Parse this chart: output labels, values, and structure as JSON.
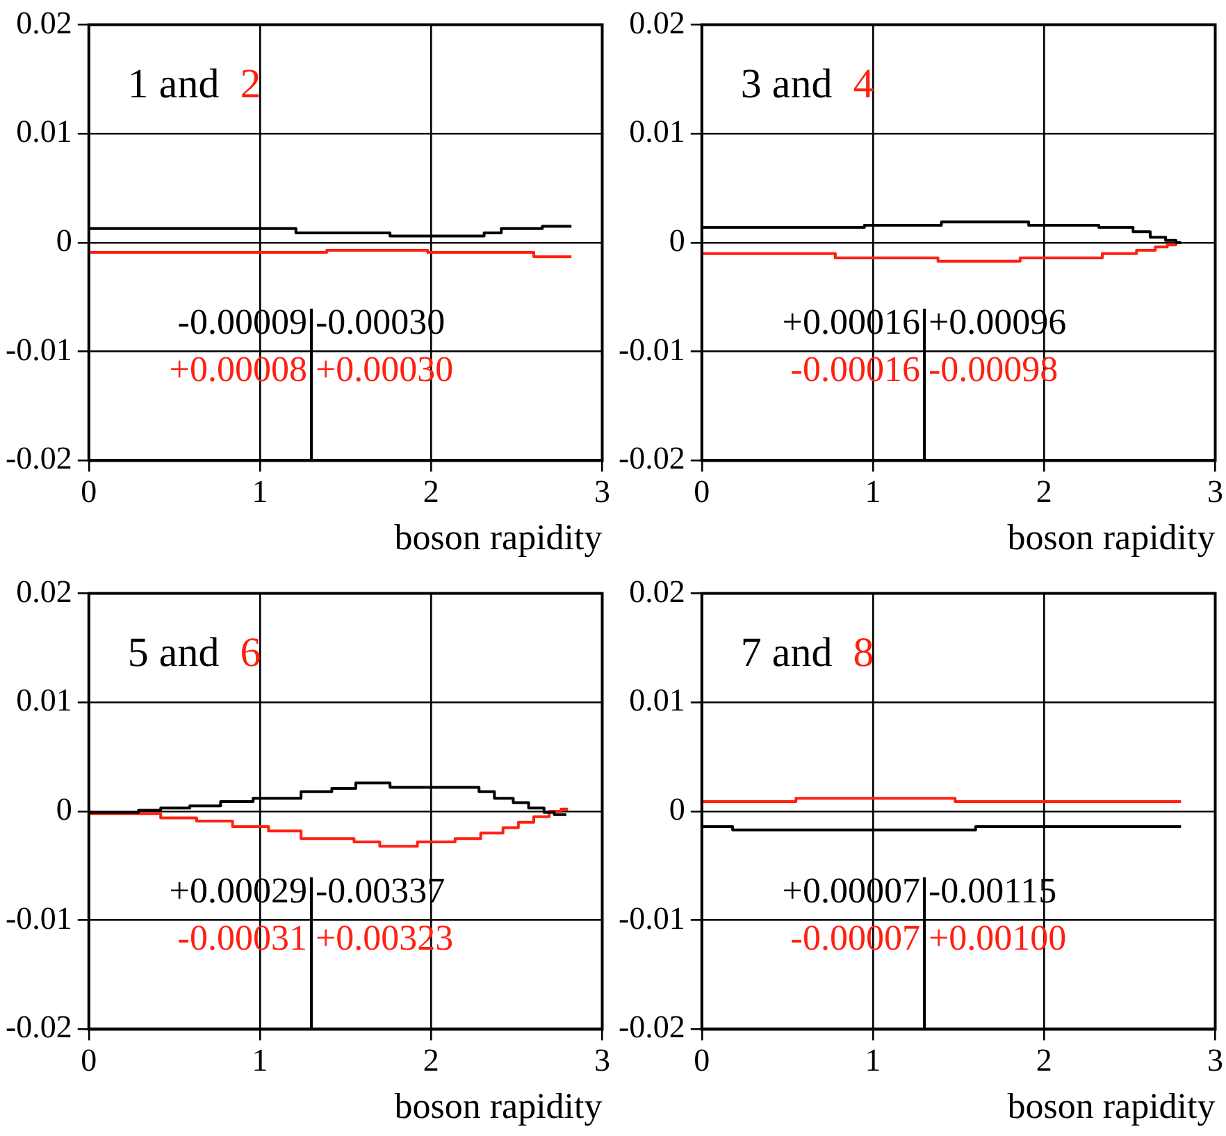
{
  "chart_data": [
    {
      "type": "step",
      "xlabel": "boson rapidity",
      "xlim": [
        0,
        3
      ],
      "xticks": [
        0,
        1,
        2,
        3
      ],
      "ylim": [
        -0.02,
        0.02
      ],
      "yticks": [
        -0.02,
        -0.01,
        0,
        0.01,
        0.02
      ],
      "grid": true,
      "legend": "top left",
      "annotations": [
        "and",
        "-0.00009",
        "-0.00030",
        "+0.00008",
        "+0.00030"
      ],
      "series": [
        {
          "name": "1",
          "color": "#000000",
          "x": [
            0,
            1.21,
            1.76,
            2.31,
            2.41,
            2.65,
            2.74,
            2.82
          ],
          "values": [
            0.0015,
            0.0013,
            0.0009,
            0.0006,
            0.0009,
            0.0013,
            0.0015,
            0.0015
          ]
        },
        {
          "name": "2",
          "color": "#ff2010",
          "x": [
            0,
            1.39,
            1.98,
            2.6,
            2.71,
            2.82
          ],
          "values": [
            -0.0012,
            -0.0009,
            -0.0007,
            -0.0009,
            -0.0013,
            -0.0013
          ]
        }
      ]
    },
    {
      "type": "step",
      "xlabel": "boson rapidity",
      "xlim": [
        0,
        3
      ],
      "xticks": [
        0,
        1,
        2,
        3
      ],
      "ylim": [
        -0.02,
        0.02
      ],
      "yticks": [
        -0.02,
        -0.01,
        0,
        0.01,
        0.02
      ],
      "grid": true,
      "legend": "top left",
      "annotations": [
        "and",
        "+0.00016",
        "+0.00096",
        "-0.00016",
        "-0.00098"
      ],
      "series": [
        {
          "name": "3",
          "color": "#000000",
          "x": [
            0,
            0.95,
            1.4,
            1.91,
            2.32,
            2.52,
            2.62,
            2.71,
            2.77,
            2.8
          ],
          "values": [
            0.001,
            0.0014,
            0.0016,
            0.0019,
            0.0016,
            0.0014,
            0.001,
            0.0005,
            0.0002,
            0
          ]
        },
        {
          "name": "4",
          "color": "#ff2010",
          "x": [
            0,
            0.78,
            1.38,
            1.86,
            2.34,
            2.54,
            2.65,
            2.72,
            2.77,
            2.8
          ],
          "values": [
            -0.0007,
            -0.001,
            -0.0014,
            -0.0017,
            -0.0014,
            -0.001,
            -0.0007,
            -0.0004,
            -0.0002,
            0
          ]
        }
      ]
    },
    {
      "type": "step",
      "xlabel": "boson rapidity",
      "xlim": [
        0,
        3
      ],
      "xticks": [
        0,
        1,
        2,
        3
      ],
      "ylim": [
        -0.02,
        0.02
      ],
      "yticks": [
        -0.02,
        -0.01,
        0,
        0.01,
        0.02
      ],
      "grid": true,
      "legend": "top left",
      "annotations": [
        "and",
        "+0.00029",
        "-0.00337",
        "-0.00031",
        "+0.00323"
      ],
      "series": [
        {
          "name": "5",
          "color": "#000000",
          "x": [
            0,
            0.29,
            0.42,
            0.59,
            0.77,
            0.96,
            1.24,
            1.42,
            1.56,
            1.76,
            2.28,
            2.37,
            2.48,
            2.57,
            2.66,
            2.72,
            2.79
          ],
          "values": [
            0,
            -0.0001,
            0.0001,
            0.0003,
            0.0005,
            0.0009,
            0.0012,
            0.0018,
            0.0021,
            0.0026,
            0.0022,
            0.0018,
            0.0012,
            0.0008,
            0.0003,
            -0.0001,
            -0.0003
          ]
        },
        {
          "name": "6",
          "color": "#ff2010",
          "x": [
            0,
            0.42,
            0.63,
            0.84,
            1.05,
            1.24,
            1.55,
            1.7,
            1.92,
            2.14,
            2.29,
            2.42,
            2.51,
            2.6,
            2.69,
            2.76,
            2.8
          ],
          "values": [
            0,
            -0.0002,
            -0.0006,
            -0.0009,
            -0.0014,
            -0.0018,
            -0.0025,
            -0.0028,
            -0.0032,
            -0.0028,
            -0.0025,
            -0.002,
            -0.0015,
            -0.001,
            -0.0005,
            0,
            0.0002
          ]
        }
      ]
    },
    {
      "type": "step",
      "xlabel": "boson rapidity",
      "xlim": [
        0,
        3
      ],
      "xticks": [
        0,
        1,
        2,
        3
      ],
      "ylim": [
        -0.02,
        0.02
      ],
      "yticks": [
        -0.02,
        -0.01,
        0,
        0.01,
        0.02
      ],
      "grid": true,
      "legend": "top left",
      "annotations": [
        "and",
        "+0.00007",
        "-0.00115",
        "-0.00007",
        "+0.00100"
      ],
      "series": [
        {
          "name": "7",
          "color": "#000000",
          "x": [
            0,
            0.18,
            1.6,
            2.71,
            2.8
          ],
          "values": [
            -0.0017,
            -0.0014,
            -0.0017,
            -0.0014,
            -0.0014
          ]
        },
        {
          "name": "8",
          "color": "#ff2010",
          "x": [
            0,
            0.55,
            1.48,
            2.69,
            2.8
          ],
          "values": [
            0.0012,
            0.0009,
            0.0012,
            0.0009,
            0.0009
          ]
        }
      ]
    }
  ]
}
